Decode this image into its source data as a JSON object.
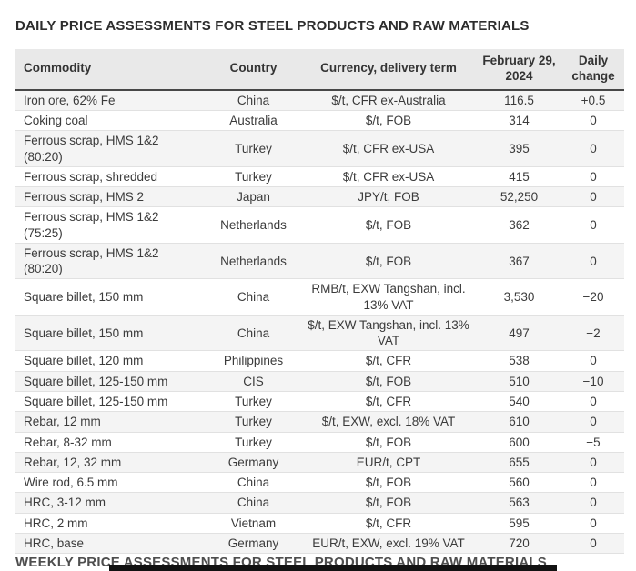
{
  "page": {
    "title": "DAILY PRICE ASSESSMENTS FOR STEEL PRODUCTS AND RAW MATERIALS",
    "footer_title": "WEEKLY PRICE ASSESSMENTS FOR STEEL PRODUCTS AND RAW MATERIALS"
  },
  "colors": {
    "header_bg": "#e9e9e9",
    "header_rule": "#474747",
    "row_alt_bg": "#f4f4f4",
    "row_border": "#e1e1e1",
    "text": "#3b3b3b",
    "bottom_bar": "#121212"
  },
  "table": {
    "headers": [
      "Commodity",
      "Country",
      "Currency, delivery term",
      "February 29, 2024",
      "Daily change"
    ],
    "rows": [
      {
        "commodity": "Iron ore, 62% Fe",
        "country": "China",
        "currency": "$/t, CFR ex-Australia",
        "price": "116.5",
        "change": "+0.5"
      },
      {
        "commodity": "Coking coal",
        "country": "Australia",
        "currency": "$/t, FOB",
        "price": "314",
        "change": "0"
      },
      {
        "commodity": "Ferrous scrap, HMS 1&2 (80:20)",
        "country": "Turkey",
        "currency": "$/t, CFR ex-USA",
        "price": "395",
        "change": "0"
      },
      {
        "commodity": "Ferrous scrap, shredded",
        "country": "Turkey",
        "currency": "$/t, CFR ex-USA",
        "price": "415",
        "change": "0"
      },
      {
        "commodity": "Ferrous scrap, HMS 2",
        "country": "Japan",
        "currency": "JPY/t, FOB",
        "price": "52,250",
        "change": "0"
      },
      {
        "commodity": "Ferrous scrap, HMS 1&2 (75:25)",
        "country": "Netherlands",
        "currency": "$/t, FOB",
        "price": "362",
        "change": "0"
      },
      {
        "commodity": "Ferrous scrap, HMS 1&2 (80:20)",
        "country": "Netherlands",
        "currency": "$/t, FOB",
        "price": "367",
        "change": "0"
      },
      {
        "commodity": "Square billet, 150 mm",
        "country": "China",
        "currency": "RMB/t, EXW Tangshan, incl. 13% VAT",
        "price": "3,530",
        "change": "−20"
      },
      {
        "commodity": "Square billet, 150 mm",
        "country": "China",
        "currency": "$/t, EXW Tangshan, incl. 13% VAT",
        "price": "497",
        "change": "−2"
      },
      {
        "commodity": "Square billet, 120 mm",
        "country": "Philippines",
        "currency": "$/t, CFR",
        "price": "538",
        "change": "0"
      },
      {
        "commodity": "Square billet, 125-150 mm",
        "country": "CIS",
        "currency": "$/t, FOB",
        "price": "510",
        "change": "−10"
      },
      {
        "commodity": "Square billet, 125-150 mm",
        "country": "Turkey",
        "currency": "$/t, CFR",
        "price": "540",
        "change": "0"
      },
      {
        "commodity": "Rebar, 12 mm",
        "country": "Turkey",
        "currency": "$/t, EXW, excl. 18% VAT",
        "price": "610",
        "change": "0"
      },
      {
        "commodity": "Rebar, 8-32 mm",
        "country": "Turkey",
        "currency": "$/t, FOB",
        "price": "600",
        "change": "−5"
      },
      {
        "commodity": "Rebar, 12, 32 mm",
        "country": "Germany",
        "currency": "EUR/t, CPT",
        "price": "655",
        "change": "0"
      },
      {
        "commodity": "Wire rod, 6.5 mm",
        "country": "China",
        "currency": "$/t, FOB",
        "price": "560",
        "change": "0"
      },
      {
        "commodity": "HRC, 3-12 mm",
        "country": "China",
        "currency": "$/t, FOB",
        "price": "563",
        "change": "0"
      },
      {
        "commodity": "HRC, 2 mm",
        "country": "Vietnam",
        "currency": "$/t, CFR",
        "price": "595",
        "change": "0"
      },
      {
        "commodity": "HRC, base",
        "country": "Germany",
        "currency": "EUR/t, EXW, excl. 19% VAT",
        "price": "720",
        "change": "0"
      }
    ]
  }
}
